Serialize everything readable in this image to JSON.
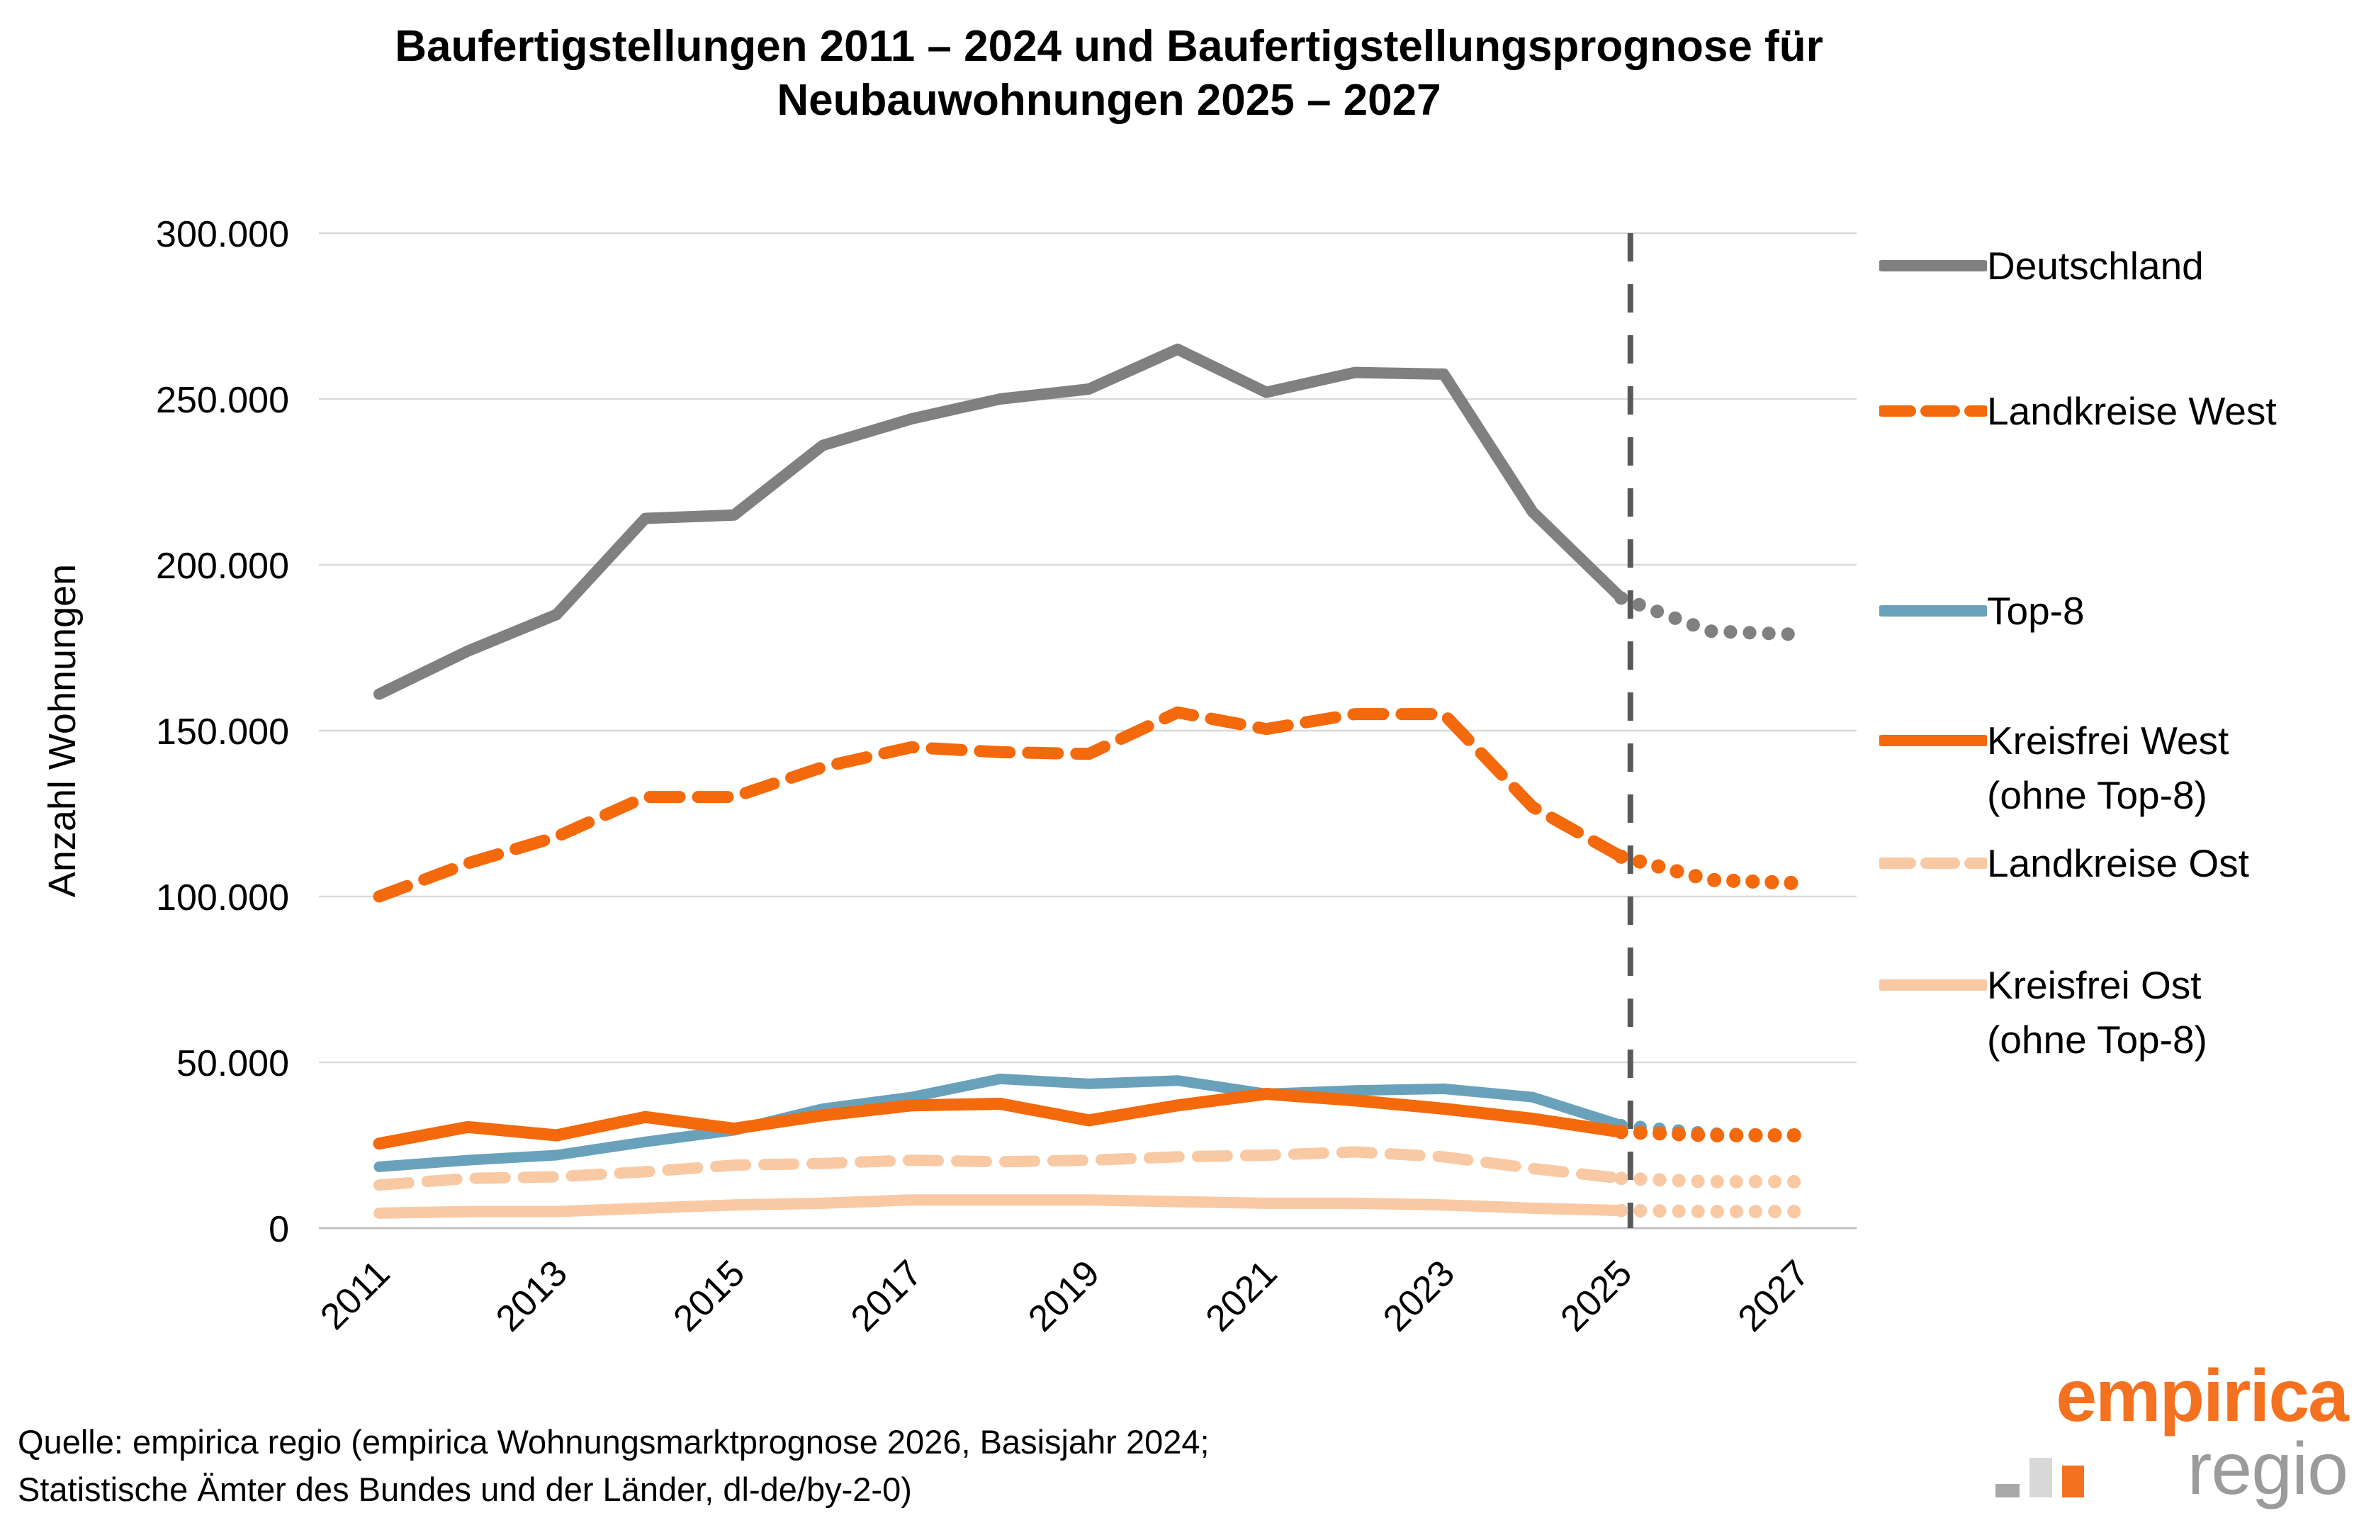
{
  "title": {
    "line1": "Baufertigstellungen 2011 – 2024 und Baufertigstellungsprognose für",
    "line2": "Neubauwohnungen 2025 – 2027"
  },
  "y_axis": {
    "label": "Anzahl Wohnungen",
    "tick_labels": [
      "300.000",
      "250.000",
      "200.000",
      "150.000",
      "100.000",
      "50.000",
      "0"
    ],
    "tick_values": [
      300000,
      250000,
      200000,
      150000,
      100000,
      50000,
      0
    ]
  },
  "x_axis": {
    "tick_labels": [
      "2011",
      "2013",
      "2015",
      "2017",
      "2019",
      "2021",
      "2023",
      "2025",
      "2027"
    ]
  },
  "chart_data": {
    "type": "line",
    "title": "Baufertigstellungen 2011 – 2024 und Baufertigstellungsprognose für Neubauwohnungen 2025 – 2027",
    "ylabel": "Anzahl Wohnungen",
    "ylim": [
      0,
      300000
    ],
    "ytick_step": 50000,
    "grid": "horizontal",
    "legend_position": "right",
    "x": [
      2011,
      2012,
      2013,
      2014,
      2015,
      2016,
      2017,
      2018,
      2019,
      2020,
      2021,
      2022,
      2023,
      2024,
      2025,
      2026,
      2027
    ],
    "xticks": [
      2011,
      2013,
      2015,
      2017,
      2019,
      2021,
      2023,
      2025,
      2027
    ],
    "forecast_start_year": 2025,
    "forecast_boundary_line": {
      "at_year": 2025,
      "style": "dashed",
      "color": "#595959"
    },
    "series": [
      {
        "name": "Deutschland",
        "legend_lines": [
          "Deutschland"
        ],
        "color": "#808080",
        "line_style": "solid",
        "forecast_style": "dotted",
        "width": 16,
        "values": [
          161000,
          174000,
          185000,
          214000,
          215000,
          236000,
          244000,
          250000,
          253000,
          265000,
          252000,
          258000,
          257500,
          216000,
          190000,
          180000,
          179000
        ]
      },
      {
        "name": "Landkreise West",
        "legend_lines": [
          "Landkreise West"
        ],
        "color": "#f4690b",
        "line_style": "dashed",
        "forecast_style": "dotted",
        "width": 17,
        "values": [
          100000,
          110000,
          118000,
          130000,
          130000,
          139000,
          145000,
          143500,
          143000,
          155500,
          150500,
          155000,
          155000,
          127000,
          112000,
          105000,
          104000
        ]
      },
      {
        "name": "Top-8",
        "legend_lines": [
          "Top-8"
        ],
        "color": "#69a1bb",
        "line_style": "solid",
        "forecast_style": "dotted",
        "width": 15,
        "values": [
          18500,
          20500,
          22000,
          26000,
          29500,
          36000,
          39500,
          45000,
          43500,
          44500,
          40500,
          41500,
          42000,
          39500,
          31000,
          28500,
          28000
        ]
      },
      {
        "name": "Kreisfrei West (ohne Top-8)",
        "legend_lines": [
          "Kreisfrei West",
          "(ohne Top-8)"
        ],
        "color": "#f4690b",
        "line_style": "solid",
        "forecast_style": "dotted",
        "width": 17,
        "values": [
          25500,
          30500,
          28000,
          33500,
          30000,
          34000,
          37000,
          37500,
          32500,
          37000,
          40500,
          38500,
          36000,
          33000,
          29000,
          28000,
          28000
        ]
      },
      {
        "name": "Landkreise Ost",
        "legend_lines": [
          "Landkreise Ost"
        ],
        "color": "#f9c9a4",
        "line_style": "dashed",
        "forecast_style": "dotted",
        "width": 16,
        "values": [
          13000,
          15000,
          15500,
          17000,
          19000,
          19500,
          20500,
          20000,
          20500,
          21500,
          22000,
          23000,
          21500,
          18000,
          15000,
          14000,
          14000
        ]
      },
      {
        "name": "Kreisfrei Ost (ohne Top-8)",
        "legend_lines": [
          "Kreisfrei Ost",
          "(ohne Top-8)"
        ],
        "color": "#f9c9a4",
        "line_style": "solid",
        "forecast_style": "dotted",
        "width": 16,
        "values": [
          4500,
          5000,
          5000,
          6000,
          7000,
          7500,
          8500,
          8500,
          8500,
          8000,
          7500,
          7500,
          7000,
          6000,
          5300,
          5000,
          5000
        ]
      }
    ],
    "colors": {
      "gridline": "#d9d9d9",
      "axis_line": "#bfbfbf",
      "forecast_line": "#595959",
      "text": "#000000"
    }
  },
  "source": {
    "line1": "Quelle: empirica regio (empirica Wohnungsmarktprognose 2026, Basisjahr 2024;",
    "line2": "Statistische Ämter des Bundes und der Länder, dl-de/by-2-0)"
  },
  "logo": {
    "word1": "empirica",
    "word2": "regio"
  }
}
